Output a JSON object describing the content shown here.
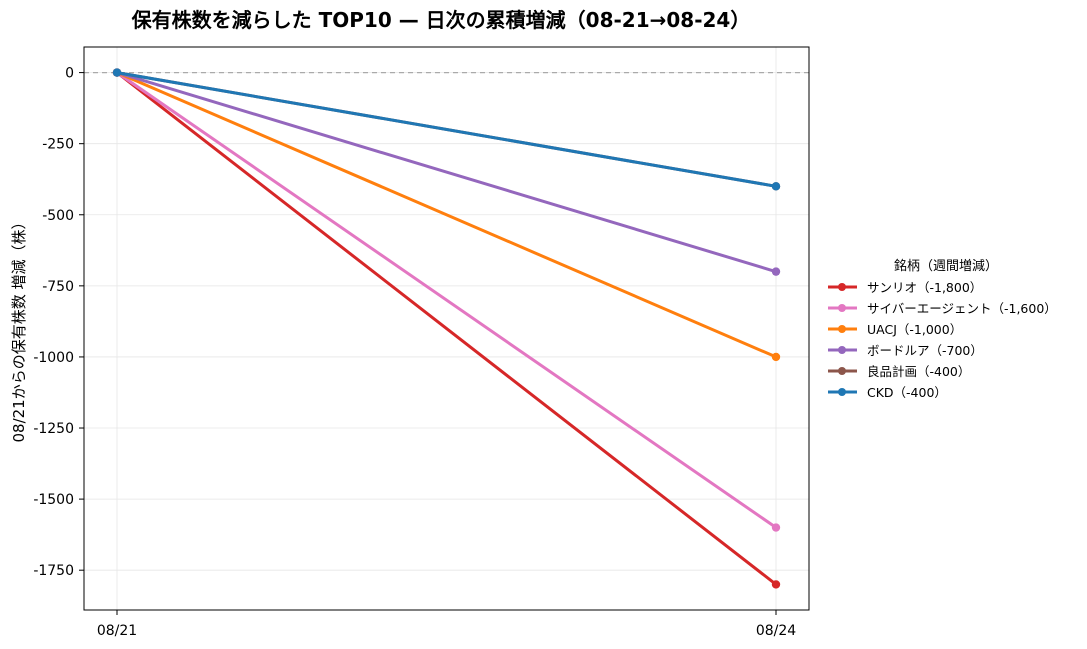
{
  "chart_data": {
    "type": "line",
    "title": "保有株数を減らした TOP10 — 日次の累積増減（08-21→08-24）",
    "xlabel": "",
    "ylabel": "08/21からの保有株数 増減（株）",
    "x": [
      "08/21",
      "08/24"
    ],
    "y_ticks": [
      0,
      -250,
      -500,
      -750,
      -1000,
      -1250,
      -1500,
      -1750
    ],
    "ylim": [
      -1890,
      90
    ],
    "grid": true,
    "zero_line": true,
    "legend_placement": "outside-right",
    "legend_title": "銘柄（週間増減）",
    "series": [
      {
        "name": "サンリオ（-1,800）",
        "color": "#d62728",
        "values": [
          0,
          -1800
        ]
      },
      {
        "name": "サイバーエージェント（-1,600）",
        "color": "#e377c2",
        "values": [
          0,
          -1600
        ]
      },
      {
        "name": "UACJ（-1,000）",
        "color": "#ff7f0e",
        "values": [
          0,
          -1000
        ]
      },
      {
        "name": "ボードルア（-700）",
        "color": "#9467bd",
        "values": [
          0,
          -700
        ]
      },
      {
        "name": "良品計画（-400）",
        "color": "#8c564b",
        "values": [
          0,
          -400
        ]
      },
      {
        "name": "CKD（-400）",
        "color": "#1f77b4",
        "values": [
          0,
          -400
        ]
      }
    ]
  }
}
